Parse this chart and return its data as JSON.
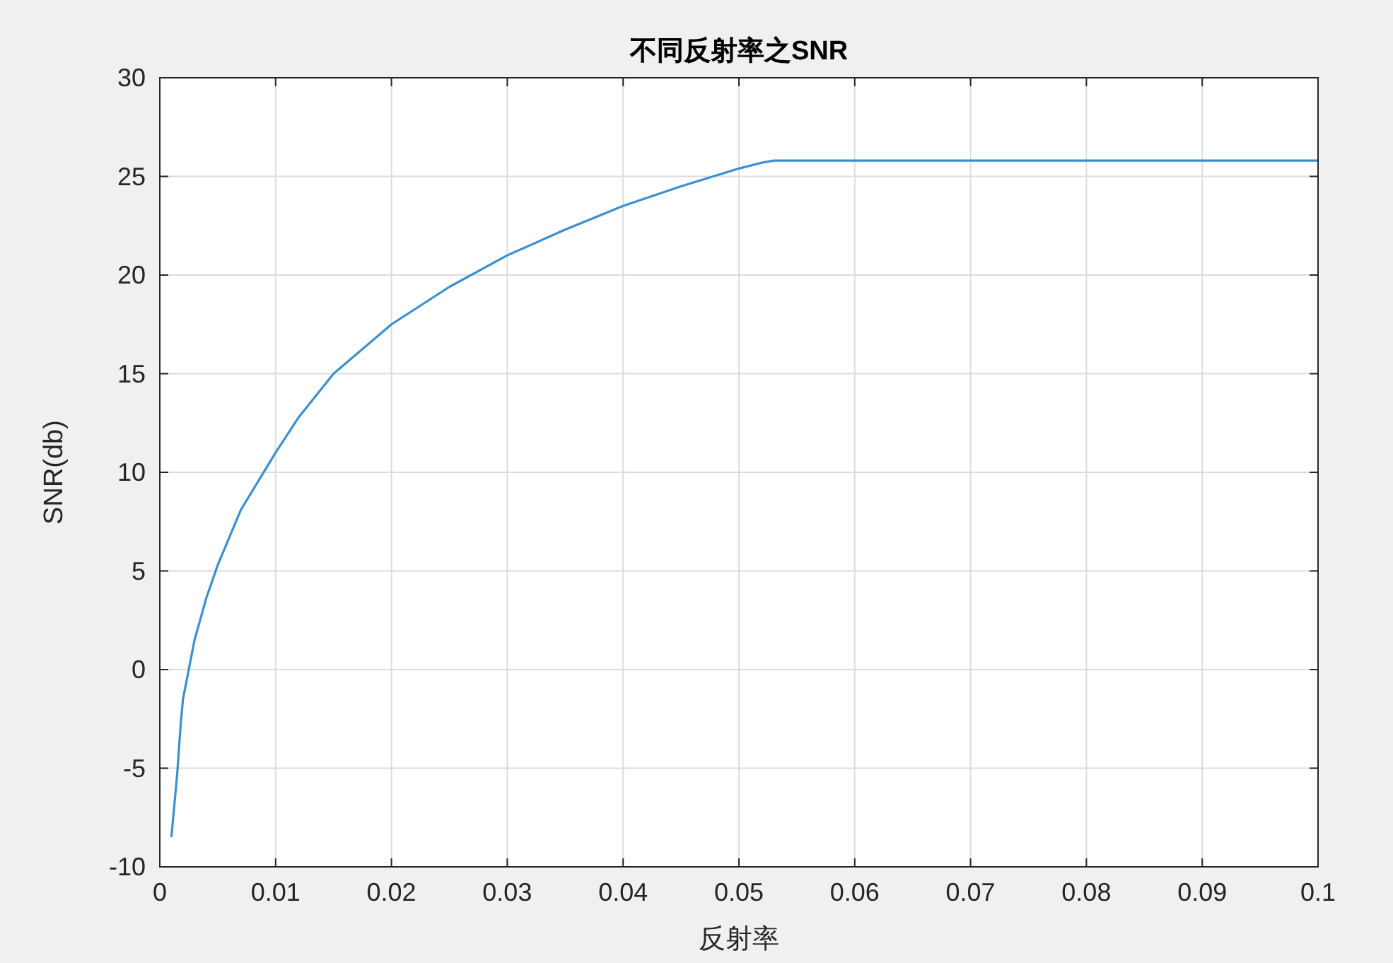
{
  "chart_data": {
    "type": "line",
    "title": "不同反射率之SNR",
    "xlabel": "反射率",
    "ylabel": "SNR(db)",
    "xlim": [
      0,
      0.1
    ],
    "xticks": [
      0,
      0.01,
      0.02,
      0.03,
      0.04,
      0.05,
      0.06,
      0.07,
      0.08,
      0.09,
      0.1
    ],
    "ylim": [
      -10,
      30
    ],
    "yticks": [
      -10,
      -5,
      0,
      5,
      10,
      15,
      20,
      25,
      30
    ],
    "grid": true,
    "marker": "none",
    "line_style": "solid",
    "series": [
      {
        "color": "#3b8fd1",
        "x": [
          0.001,
          0.0015,
          0.0018,
          0.002,
          0.003,
          0.004,
          0.005,
          0.007,
          0.01,
          0.012,
          0.015,
          0.02,
          0.025,
          0.03,
          0.035,
          0.04,
          0.045,
          0.05,
          0.052,
          0.053,
          0.06,
          0.07,
          0.08,
          0.09,
          0.1
        ],
        "values": [
          -8.5,
          -5.3,
          -2.8,
          -1.5,
          1.5,
          3.6,
          5.3,
          8.1,
          11,
          12.8,
          15,
          17.5,
          19.4,
          21,
          22.3,
          23.5,
          24.5,
          25.4,
          25.7,
          25.8,
          25.8,
          25.8,
          25.8,
          25.8,
          25.8
        ]
      }
    ]
  }
}
